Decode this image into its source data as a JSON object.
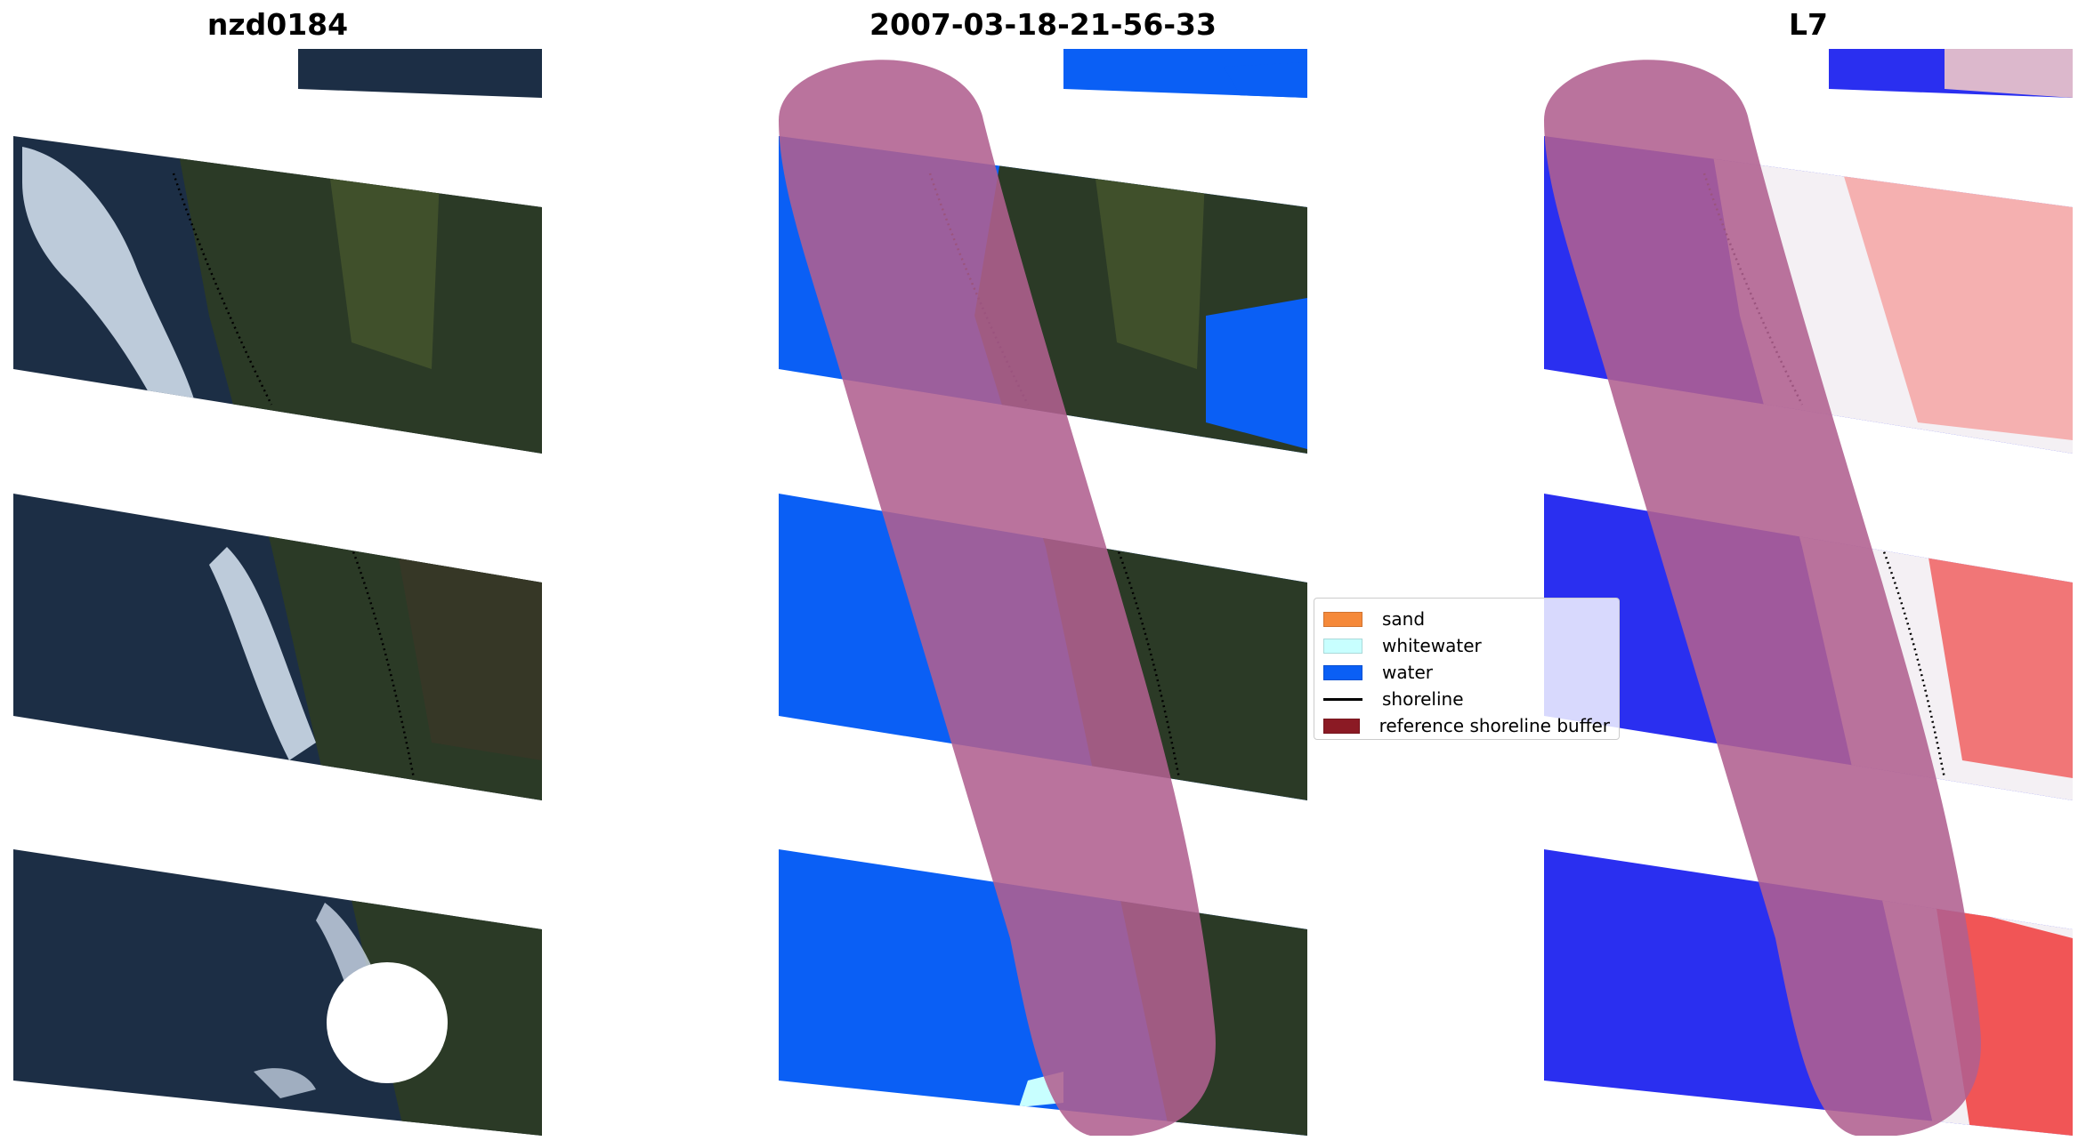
{
  "panels": {
    "left_title": "nzd0184",
    "middle_title": "2007-03-18-21-56-33",
    "right_title": "L7"
  },
  "legend": {
    "items": [
      {
        "label": "sand",
        "color": "#f5893a",
        "kind": "patch"
      },
      {
        "label": "whitewater",
        "color": "#c8ffff",
        "kind": "patch"
      },
      {
        "label": "water",
        "color": "#0a5ff5",
        "kind": "patch"
      },
      {
        "label": "shoreline",
        "color": "#000000",
        "kind": "line"
      },
      {
        "label": "reference shoreline buffer",
        "color": "#8b1a24",
        "kind": "patch"
      }
    ]
  },
  "colors": {
    "water_dark": "#1c2e45",
    "whitewater_rgb": "#d9e6f5",
    "vegetation": "#2b3a26",
    "class_water": "#0a5ff5",
    "buffer_overlay": "#b06090",
    "index_blue": "#2a2ff0",
    "index_red": "#f03a3a"
  }
}
